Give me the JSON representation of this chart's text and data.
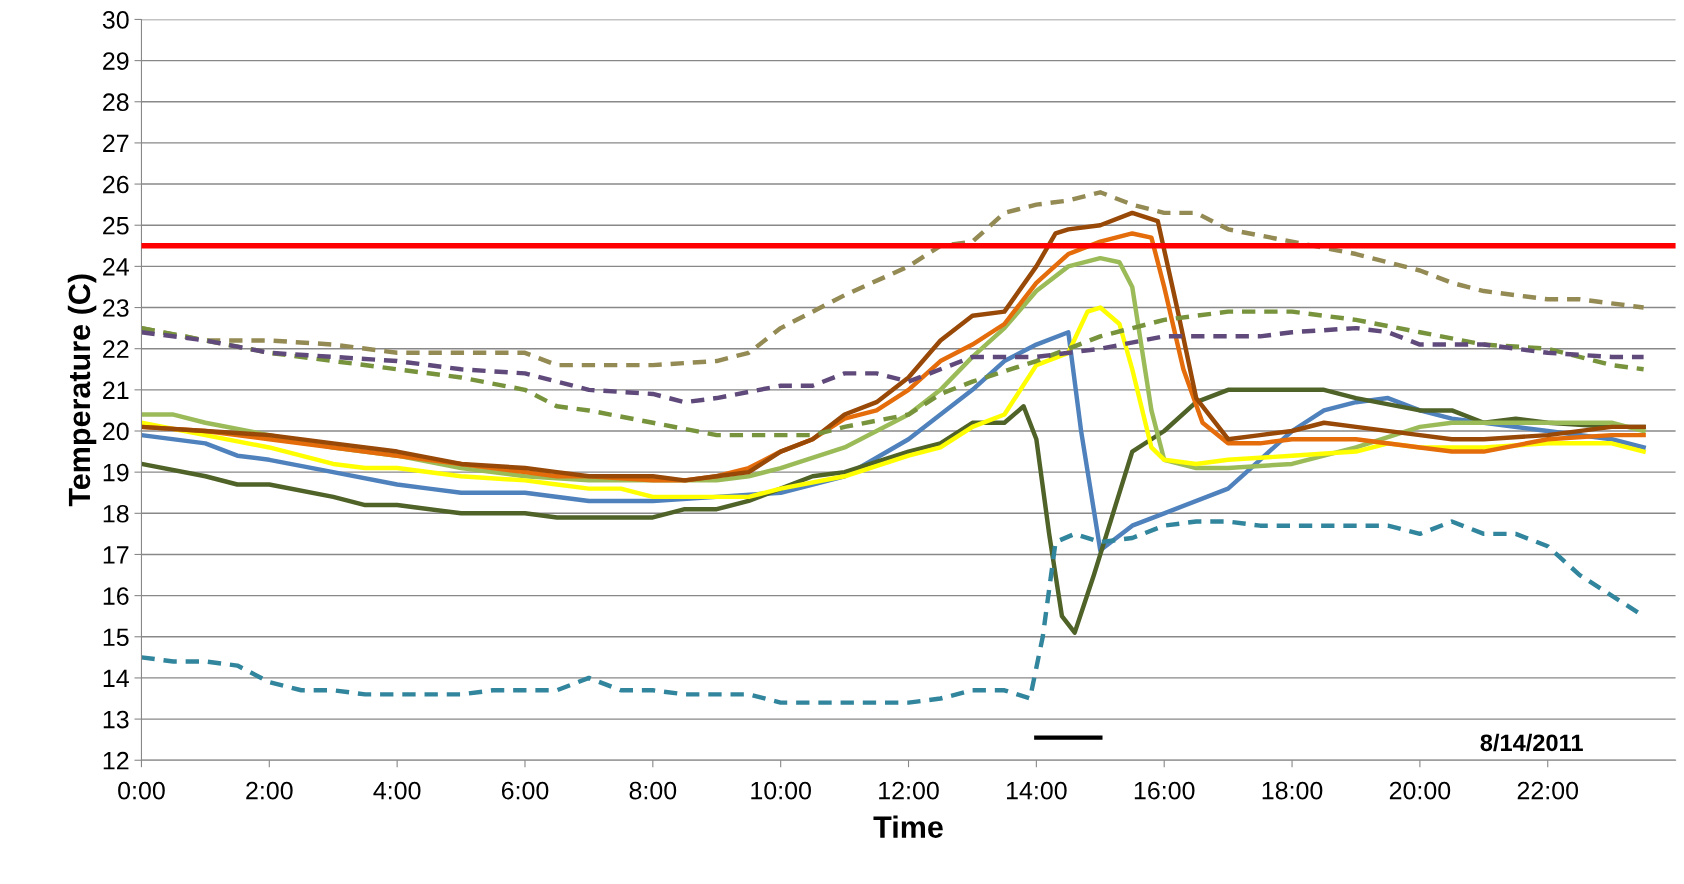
{
  "chart_data": {
    "type": "line",
    "xlabel": "Time",
    "ylabel": "Temperature (C)",
    "xlim": [
      0,
      24
    ],
    "ylim": [
      12,
      30
    ],
    "xticks": [
      {
        "value": 0,
        "label": "0:00"
      },
      {
        "value": 2,
        "label": "2:00"
      },
      {
        "value": 4,
        "label": "4:00"
      },
      {
        "value": 6,
        "label": "6:00"
      },
      {
        "value": 8,
        "label": "8:00"
      },
      {
        "value": 10,
        "label": "10:00"
      },
      {
        "value": 12,
        "label": "12:00"
      },
      {
        "value": 14,
        "label": "14:00"
      },
      {
        "value": 16,
        "label": "16:00"
      },
      {
        "value": 18,
        "label": "18:00"
      },
      {
        "value": 20,
        "label": "20:00"
      },
      {
        "value": 22,
        "label": "22:00"
      }
    ],
    "yticks": [
      12,
      13,
      14,
      15,
      16,
      17,
      18,
      19,
      20,
      21,
      22,
      23,
      24,
      25,
      26,
      27,
      28,
      29,
      30
    ],
    "grid": "y",
    "legend": false,
    "annotations": [
      "8/14/2011"
    ],
    "ref_lines": [
      {
        "axis": "y",
        "value": 24.5,
        "color": "#ff0000"
      }
    ],
    "series": [
      {
        "color": "#4f81bd",
        "x": [
          0,
          1,
          1.5,
          2,
          3,
          4,
          4.5,
          5,
          6,
          7,
          8,
          9,
          10,
          11,
          12,
          13,
          13.5,
          14,
          14.5,
          14.7,
          15,
          15.5,
          16,
          17,
          17.5,
          18,
          18.5,
          19,
          19.5,
          20,
          20.5,
          21,
          22,
          23,
          23.5
        ],
        "values": [
          19.9,
          19.7,
          19.4,
          19.3,
          19.0,
          18.7,
          18.6,
          18.5,
          18.5,
          18.3,
          18.3,
          18.4,
          18.5,
          18.9,
          19.8,
          21.0,
          21.7,
          22.1,
          22.4,
          20.0,
          17.1,
          17.7,
          18.0,
          18.6,
          19.3,
          20.0,
          20.5,
          20.7,
          20.8,
          20.5,
          20.3,
          20.2,
          20.0,
          19.8,
          19.6
        ]
      },
      {
        "color": "#4f6228",
        "x": [
          0,
          1,
          1.5,
          2,
          3,
          3.5,
          4,
          5,
          6,
          6.5,
          7,
          8,
          8.5,
          9,
          9.5,
          10,
          10.5,
          11,
          12,
          12.5,
          13,
          13.5,
          13.8,
          14,
          14.2,
          14.4,
          14.6,
          14.9,
          15.2,
          15.5,
          16,
          16.5,
          17,
          18,
          18.5,
          19,
          20,
          20.5,
          21,
          21.5,
          22,
          23,
          23.5
        ],
        "values": [
          19.2,
          18.9,
          18.7,
          18.7,
          18.4,
          18.2,
          18.2,
          18.0,
          18.0,
          17.9,
          17.9,
          17.9,
          18.1,
          18.1,
          18.3,
          18.6,
          18.9,
          19.0,
          19.5,
          19.7,
          20.2,
          20.2,
          20.6,
          19.8,
          17.5,
          15.5,
          15.1,
          16.5,
          18.0,
          19.5,
          20.0,
          20.7,
          21.0,
          21.0,
          21.0,
          20.8,
          20.5,
          20.5,
          20.2,
          20.3,
          20.2,
          20.1,
          20.1
        ]
      },
      {
        "color": "#9bbb59",
        "x": [
          0,
          0.5,
          1,
          2,
          3,
          4,
          5,
          6,
          7,
          8,
          9,
          9.5,
          10,
          11,
          12,
          12.5,
          13,
          13.5,
          14,
          14.5,
          15,
          15.3,
          15.5,
          15.8,
          16,
          16.5,
          17,
          18,
          19,
          20,
          20.5,
          21,
          22,
          23,
          23.5
        ],
        "values": [
          20.4,
          20.4,
          20.2,
          19.9,
          19.6,
          19.4,
          19.1,
          18.9,
          18.8,
          18.8,
          18.8,
          18.9,
          19.1,
          19.6,
          20.4,
          21.0,
          21.8,
          22.5,
          23.4,
          24.0,
          24.2,
          24.1,
          23.5,
          20.5,
          19.3,
          19.1,
          19.1,
          19.2,
          19.6,
          20.1,
          20.2,
          20.2,
          20.2,
          20.2,
          20.0
        ]
      },
      {
        "color": "#ffff00",
        "x": [
          0,
          1,
          2,
          3,
          3.5,
          4,
          5,
          6,
          6.5,
          7,
          7.5,
          8,
          9,
          9.5,
          10,
          11,
          12,
          12.5,
          13,
          13.5,
          14,
          14.5,
          14.8,
          15,
          15.3,
          15.5,
          15.8,
          16,
          16.5,
          17,
          18,
          19,
          19.5,
          20,
          21,
          22,
          23,
          23.5
        ],
        "values": [
          20.2,
          19.9,
          19.6,
          19.2,
          19.1,
          19.1,
          18.9,
          18.8,
          18.7,
          18.6,
          18.6,
          18.4,
          18.4,
          18.4,
          18.6,
          18.9,
          19.4,
          19.6,
          20.1,
          20.4,
          21.6,
          21.9,
          22.9,
          23.0,
          22.6,
          21.5,
          19.6,
          19.3,
          19.2,
          19.3,
          19.4,
          19.5,
          19.7,
          19.6,
          19.6,
          19.7,
          19.7,
          19.5
        ]
      },
      {
        "color": "#e46c0a",
        "x": [
          0,
          1,
          2,
          3,
          4,
          5,
          6,
          6.5,
          7,
          8,
          8.5,
          9,
          9.5,
          10,
          10.5,
          11,
          11.5,
          12,
          12.5,
          13,
          13.5,
          14,
          14.5,
          15,
          15.5,
          15.8,
          16,
          16.3,
          16.6,
          17,
          17.5,
          18,
          18.5,
          19,
          20,
          20.5,
          21,
          22,
          23,
          23.5
        ],
        "values": [
          20.1,
          20.0,
          19.8,
          19.6,
          19.4,
          19.2,
          19.0,
          18.9,
          18.9,
          18.8,
          18.8,
          18.9,
          19.1,
          19.5,
          19.8,
          20.3,
          20.5,
          21.0,
          21.7,
          22.1,
          22.6,
          23.6,
          24.3,
          24.6,
          24.8,
          24.7,
          23.5,
          21.5,
          20.2,
          19.7,
          19.7,
          19.8,
          19.8,
          19.8,
          19.6,
          19.5,
          19.5,
          19.8,
          19.9,
          19.9
        ]
      },
      {
        "color": "#984807",
        "x": [
          0,
          1,
          2,
          3,
          4,
          5,
          6,
          6.5,
          7,
          8,
          8.5,
          9,
          9.5,
          10,
          10.5,
          11,
          11.5,
          12,
          12.5,
          13,
          13.5,
          14,
          14.3,
          14.5,
          15,
          15.5,
          15.9,
          16.2,
          16.5,
          17,
          17.5,
          18,
          18.5,
          19,
          20,
          20.5,
          21,
          22,
          23,
          23.5
        ],
        "values": [
          20.1,
          20.0,
          19.9,
          19.7,
          19.5,
          19.2,
          19.1,
          19.0,
          18.9,
          18.9,
          18.8,
          18.9,
          19.0,
          19.5,
          19.8,
          20.4,
          20.7,
          21.3,
          22.2,
          22.8,
          22.9,
          24.0,
          24.8,
          24.9,
          25.0,
          25.3,
          25.1,
          23.0,
          20.8,
          19.8,
          19.9,
          20.0,
          20.2,
          20.1,
          19.9,
          19.8,
          19.8,
          19.9,
          20.1,
          20.1
        ]
      },
      {
        "color": "#948a54",
        "line_style": "dashed",
        "x": [
          0,
          1,
          2,
          3,
          4,
          5,
          6,
          6.5,
          7,
          8,
          9,
          9.5,
          10,
          11,
          12,
          12.5,
          13,
          13.5,
          14,
          14.5,
          15,
          15.5,
          16,
          16.5,
          17,
          18,
          19,
          20,
          20.5,
          21,
          22,
          22.5,
          23,
          23.5
        ],
        "values": [
          22.5,
          22.2,
          22.2,
          22.1,
          21.9,
          21.9,
          21.9,
          21.6,
          21.6,
          21.6,
          21.7,
          21.9,
          22.5,
          23.3,
          24.0,
          24.5,
          24.6,
          25.3,
          25.5,
          25.6,
          25.8,
          25.5,
          25.3,
          25.3,
          24.9,
          24.6,
          24.3,
          23.9,
          23.6,
          23.4,
          23.2,
          23.2,
          23.1,
          23.0
        ]
      },
      {
        "color": "#77933c",
        "line_style": "dashed",
        "x": [
          0,
          1,
          2,
          3,
          4,
          5,
          6,
          6.5,
          7,
          8,
          9,
          10,
          10.5,
          11,
          12,
          12.5,
          13,
          14,
          15,
          15.5,
          16,
          17,
          18,
          18.5,
          19,
          20,
          21,
          22,
          23,
          23.5
        ],
        "values": [
          22.5,
          22.2,
          21.9,
          21.7,
          21.5,
          21.3,
          21.0,
          20.6,
          20.5,
          20.2,
          19.9,
          19.9,
          19.9,
          20.1,
          20.4,
          20.9,
          21.2,
          21.7,
          22.3,
          22.5,
          22.7,
          22.9,
          22.9,
          22.8,
          22.7,
          22.4,
          22.1,
          22.0,
          21.6,
          21.5
        ]
      },
      {
        "color": "#604a7b",
        "line_style": "dashed",
        "x": [
          0,
          1,
          2,
          3,
          4,
          5,
          6,
          6.5,
          7,
          8,
          8.5,
          9,
          10,
          10.5,
          11,
          11.5,
          12,
          12.5,
          13,
          14,
          15,
          16,
          17,
          17.5,
          18,
          19,
          19.5,
          20,
          21,
          22,
          23,
          23.5
        ],
        "values": [
          22.4,
          22.2,
          21.9,
          21.8,
          21.7,
          21.5,
          21.4,
          21.2,
          21.0,
          20.9,
          20.7,
          20.8,
          21.1,
          21.1,
          21.4,
          21.4,
          21.2,
          21.5,
          21.8,
          21.8,
          22.0,
          22.3,
          22.3,
          22.3,
          22.4,
          22.5,
          22.4,
          22.1,
          22.1,
          21.9,
          21.8,
          21.8
        ]
      },
      {
        "color": "#31859c",
        "line_style": "dashed",
        "x": [
          0,
          0.5,
          1,
          1.5,
          2,
          2.5,
          3,
          3.5,
          4,
          5,
          5.5,
          6,
          6.5,
          7,
          7.5,
          8,
          8.5,
          9,
          9.5,
          10,
          11,
          12,
          12.5,
          13,
          13.5,
          13.9,
          14.1,
          14.3,
          14.6,
          15,
          15.5,
          16,
          16.5,
          17,
          17.5,
          18,
          19,
          19.5,
          20,
          20.5,
          21,
          21.5,
          22,
          22.5,
          23,
          23.5
        ],
        "values": [
          14.5,
          14.4,
          14.4,
          14.3,
          13.9,
          13.7,
          13.7,
          13.6,
          13.6,
          13.6,
          13.7,
          13.7,
          13.7,
          14.0,
          13.7,
          13.7,
          13.6,
          13.6,
          13.6,
          13.4,
          13.4,
          13.4,
          13.5,
          13.7,
          13.7,
          13.5,
          15.0,
          17.3,
          17.5,
          17.3,
          17.4,
          17.7,
          17.8,
          17.8,
          17.7,
          17.7,
          17.7,
          17.7,
          17.5,
          17.8,
          17.5,
          17.5,
          17.2,
          16.5,
          16.0,
          15.5
        ]
      },
      {
        "color": "#000000",
        "x": [
          14,
          15
        ],
        "values": [
          12.55,
          12.55
        ]
      }
    ]
  }
}
